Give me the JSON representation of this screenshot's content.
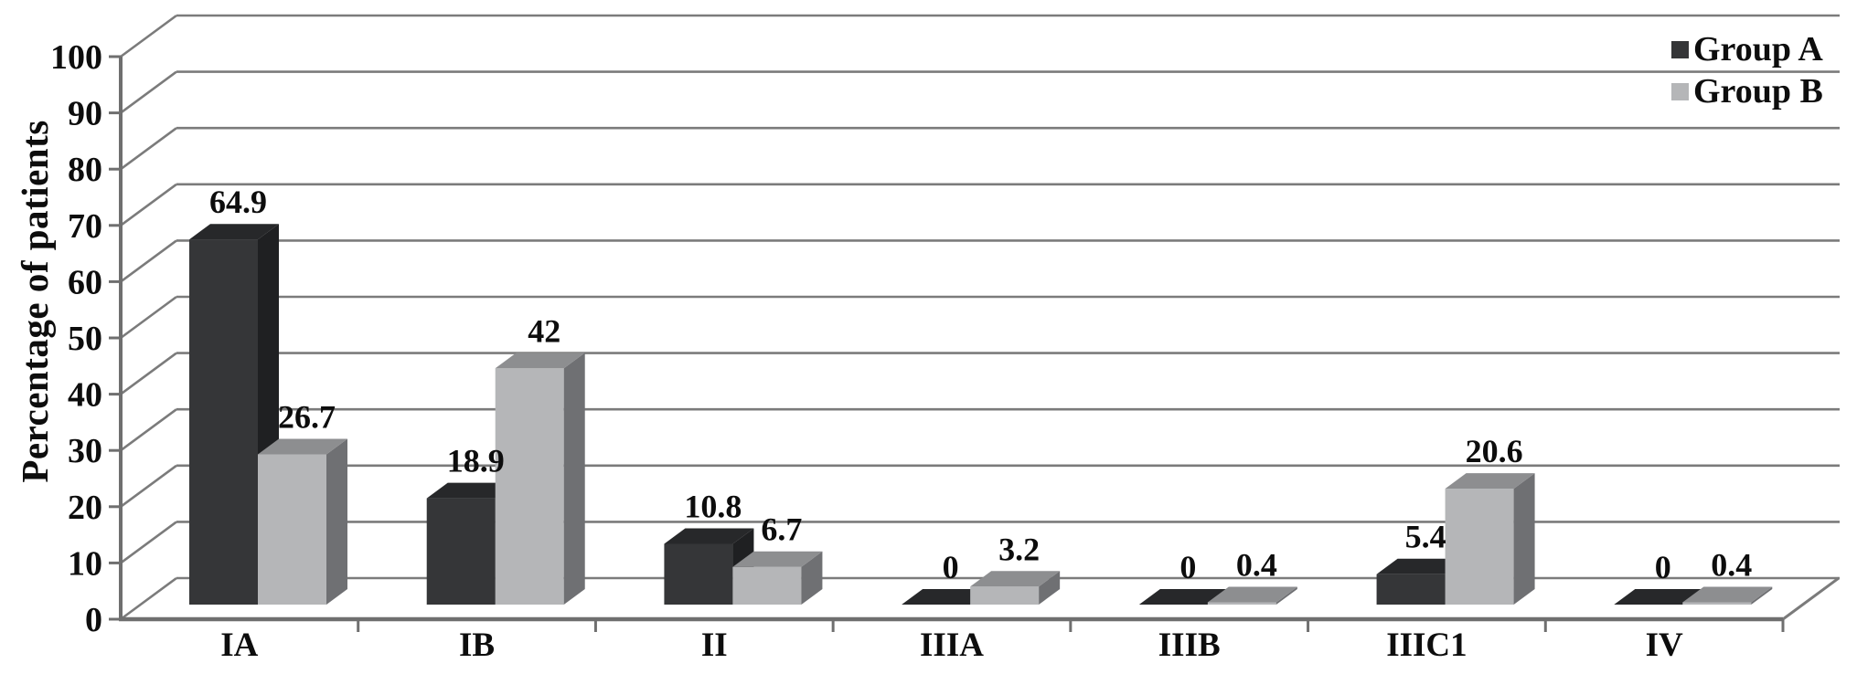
{
  "chart_data": {
    "type": "bar",
    "style": "3d-clustered-column",
    "title": "",
    "xlabel": "",
    "ylabel": "Percentage of patients",
    "categories": [
      "IA",
      "IB",
      "II",
      "IIIA",
      "IIIB",
      "IIIC1",
      "IV"
    ],
    "series": [
      {
        "name": "Group A",
        "values": [
          64.9,
          18.9,
          10.8,
          0,
          0,
          5.4,
          0
        ],
        "value_labels": [
          "64.9",
          "18.9",
          "10.8",
          "0",
          "0",
          "5.4",
          "0"
        ],
        "front_color": "#353638",
        "top_color": "#27282a",
        "side_color": "#1f2022"
      },
      {
        "name": "Group B",
        "values": [
          26.7,
          42,
          6.7,
          3.2,
          0.4,
          20.6,
          0.4
        ],
        "value_labels": [
          "26.7",
          "42",
          "6.7",
          "3.2",
          "0.4",
          "20.6",
          "0.4"
        ],
        "front_color": "#b5b6b8",
        "top_color": "#8d8e90",
        "side_color": "#6f7073"
      }
    ],
    "ylim": [
      0,
      100
    ],
    "ytick_step": 10,
    "ytick_labels": [
      "0",
      "10",
      "20",
      "30",
      "40",
      "50",
      "60",
      "70",
      "80",
      "90",
      "100"
    ],
    "grid": true,
    "legend_position": "top-right"
  },
  "legend": {
    "items": [
      {
        "label": "Group A",
        "color": "#353638"
      },
      {
        "label": "Group B",
        "color": "#b5b6b8"
      }
    ]
  },
  "axes": {
    "y_title": "Percentage of patients"
  },
  "colors": {
    "background": "#ffffff",
    "grid": "#7b7b7b",
    "axis": "#6f6f6f",
    "text": "#0d0d0d"
  }
}
